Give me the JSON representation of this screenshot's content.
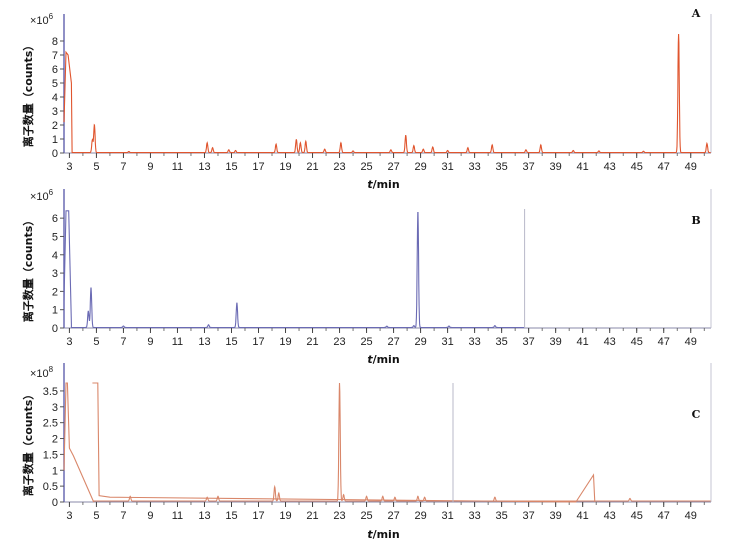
{
  "chart_data": [
    {
      "type": "line",
      "panel": "A",
      "scale_prefix": "×10",
      "scale_exponent": "6",
      "ylabel": "离子数量（counts）",
      "xlabel_var": "t",
      "xlabel_unit": "/min",
      "xlim": [
        2.6,
        50.5
      ],
      "ylim": [
        0,
        8.5
      ],
      "y_ticks": [
        0,
        1,
        2,
        3,
        4,
        5,
        6,
        7,
        8
      ],
      "x_ticks": [
        3,
        5,
        7,
        9,
        11,
        13,
        15,
        17,
        19,
        21,
        23,
        25,
        27,
        29,
        31,
        33,
        35,
        37,
        39,
        41,
        43,
        45,
        47,
        49
      ],
      "color": "#e0552e",
      "peaks": [
        [
          4.7,
          0.9
        ],
        [
          4.85,
          2.0
        ],
        [
          7.4,
          0.08
        ],
        [
          13.2,
          0.7
        ],
        [
          13.6,
          0.35
        ],
        [
          14.8,
          0.2
        ],
        [
          15.3,
          0.15
        ],
        [
          18.3,
          0.6
        ],
        [
          19.8,
          0.95
        ],
        [
          20.1,
          0.7
        ],
        [
          20.5,
          0.8
        ],
        [
          21.9,
          0.25
        ],
        [
          23.1,
          0.7
        ],
        [
          24.0,
          0.12
        ],
        [
          26.8,
          0.2
        ],
        [
          27.9,
          1.25
        ],
        [
          28.5,
          0.5
        ],
        [
          29.2,
          0.25
        ],
        [
          29.9,
          0.4
        ],
        [
          31.0,
          0.15
        ],
        [
          32.5,
          0.35
        ],
        [
          34.3,
          0.55
        ],
        [
          36.8,
          0.2
        ],
        [
          37.9,
          0.55
        ],
        [
          40.3,
          0.15
        ],
        [
          42.2,
          0.12
        ],
        [
          45.5,
          0.1
        ],
        [
          48.1,
          8.5
        ],
        [
          50.2,
          0.65
        ]
      ],
      "start_plateau": [
        [
          2.6,
          2.2
        ],
        [
          2.75,
          7.2
        ],
        [
          2.9,
          7.0
        ],
        [
          3.15,
          5.0
        ],
        [
          3.2,
          0.0
        ]
      ]
    },
    {
      "type": "line",
      "panel": "B",
      "scale_prefix": "×10",
      "scale_exponent": "6",
      "ylabel": "离子数量（counts）",
      "xlabel_var": "t",
      "xlabel_unit": "/min",
      "xlim": [
        2.6,
        50.5
      ],
      "ylim": [
        0,
        6.5
      ],
      "y_ticks": [
        0,
        1,
        2,
        3,
        4,
        5,
        6
      ],
      "x_ticks": [
        3,
        5,
        7,
        9,
        11,
        13,
        15,
        17,
        19,
        21,
        23,
        25,
        27,
        29,
        31,
        33,
        35,
        37,
        39,
        41,
        43,
        45,
        47,
        49
      ],
      "color": "#6b6bb4",
      "trace_end": 36.7,
      "peaks": [
        [
          4.6,
          2.2
        ],
        [
          4.4,
          0.9
        ],
        [
          7.0,
          0.08
        ],
        [
          13.3,
          0.15
        ],
        [
          15.4,
          1.35
        ],
        [
          26.5,
          0.07
        ],
        [
          28.5,
          0.1
        ],
        [
          28.8,
          6.4
        ],
        [
          31.1,
          0.08
        ],
        [
          34.5,
          0.1
        ]
      ],
      "start_plateau": [
        [
          2.6,
          1.5
        ],
        [
          2.75,
          6.4
        ],
        [
          2.95,
          6.4
        ],
        [
          3.15,
          0.2
        ]
      ]
    },
    {
      "type": "line",
      "panel": "C",
      "scale_prefix": "×10",
      "scale_exponent": "8",
      "ylabel": "离子数量（counts）",
      "xlabel_var": "t",
      "xlabel_unit": "/min",
      "xlim": [
        2.6,
        50.5
      ],
      "ylim": [
        0,
        3.75
      ],
      "y_ticks": [
        0,
        0.5,
        1,
        1.5,
        2,
        2.5,
        3,
        3.5
      ],
      "y_tick_labels": [
        "0",
        "0.5",
        "1",
        "1.5",
        "2",
        "2.5",
        "3",
        "3.5"
      ],
      "x_ticks": [
        3,
        5,
        7,
        9,
        11,
        13,
        15,
        17,
        19,
        21,
        23,
        25,
        27,
        29,
        31,
        33,
        35,
        37,
        39,
        41,
        43,
        45,
        47,
        49
      ],
      "color": "#d9876a",
      "peaks": [
        [
          7.5,
          0.15
        ],
        [
          13.2,
          0.12
        ],
        [
          14.0,
          0.15
        ],
        [
          18.2,
          0.45
        ],
        [
          18.5,
          0.25
        ],
        [
          23.0,
          3.75
        ],
        [
          23.3,
          0.2
        ],
        [
          25.0,
          0.15
        ],
        [
          26.2,
          0.15
        ],
        [
          27.1,
          0.12
        ],
        [
          28.8,
          0.15
        ],
        [
          29.3,
          0.12
        ],
        [
          34.5,
          0.12
        ],
        [
          44.5,
          0.08
        ]
      ],
      "start_plateau": [
        [
          2.6,
          1.0
        ],
        [
          2.75,
          3.75
        ],
        [
          2.85,
          3.75
        ],
        [
          3.0,
          1.7
        ],
        [
          3.3,
          1.45
        ],
        [
          4.8,
          0.0
        ]
      ],
      "extra_segments": [
        [
          4.7,
          3.75
        ],
        [
          5.1,
          3.75
        ],
        [
          5.2,
          0.2
        ],
        [
          6.0,
          0.15
        ],
        [
          40.5,
          0.0
        ],
        [
          41.8,
          0.85
        ],
        [
          41.9,
          0.0
        ]
      ]
    }
  ]
}
